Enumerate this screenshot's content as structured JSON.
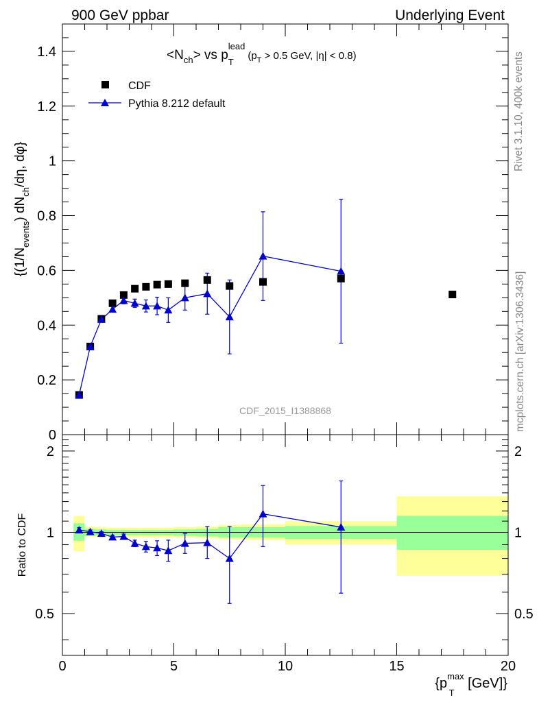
{
  "header": {
    "left": "900 GeV ppbar",
    "right": "Underlying Event"
  },
  "side_labels": {
    "rivet": "Rivet 3.1.10,  400k events",
    "mcplots": "mcplots.cern.ch [arXiv:1306.3436]"
  },
  "watermark": "CDF_2015_I1388868",
  "chart_data": [
    {
      "type": "scatter",
      "title": "<N_ch> vs p_T^lead (p_T > 0.5 GeV, |η| < 0.8)",
      "title_parts": {
        "lt": "<N",
        "ch": "ch",
        "gt_vs": "> vs p",
        "lead": "lead",
        "T": "T",
        "cut_open": "(p",
        "cut_T": "T",
        "cut_rest": " > 0.5 GeV, |η| < 0.8)"
      },
      "ylabel": "{(1/N_events) dN_ch/dη, dφ}",
      "ylabel_parts": {
        "a": "{(1/N",
        "b": "events",
        "c": ") dN",
        "d": "ch",
        "e": "/dη, dφ}"
      },
      "xlim": [
        0,
        20
      ],
      "ylim": [
        0,
        1.5
      ],
      "yticks": [
        "0",
        "0.2",
        "0.4",
        "0.6",
        "0.8",
        "1",
        "1.2",
        "1.4"
      ],
      "legend_position": "top-left",
      "series": [
        {
          "name": "CDF",
          "marker": "square",
          "color": "#000000",
          "x": [
            0.75,
            1.25,
            1.75,
            2.25,
            2.75,
            3.25,
            3.75,
            4.25,
            4.75,
            5.5,
            6.5,
            7.5,
            9.0,
            12.5,
            17.5
          ],
          "y": [
            0.145,
            0.322,
            0.423,
            0.48,
            0.51,
            0.533,
            0.54,
            0.548,
            0.55,
            0.553,
            0.565,
            0.543,
            0.558,
            0.57,
            0.512
          ]
        },
        {
          "name": "Pythia 8.212 default",
          "marker": "triangle",
          "color": "#0000cc",
          "x": [
            0.75,
            1.25,
            1.75,
            2.25,
            2.75,
            3.25,
            3.75,
            4.25,
            4.75,
            5.5,
            6.5,
            7.5,
            9.0,
            12.5
          ],
          "y": [
            0.145,
            0.322,
            0.421,
            0.458,
            0.49,
            0.48,
            0.47,
            0.47,
            0.455,
            0.5,
            0.515,
            0.43,
            0.652,
            0.597
          ],
          "yerr": [
            0.004,
            0.006,
            0.008,
            0.01,
            0.012,
            0.015,
            0.022,
            0.032,
            0.045,
            0.045,
            0.075,
            0.135,
            0.162,
            0.263
          ]
        }
      ]
    },
    {
      "type": "scatter",
      "ylabel": "Ratio to CDF",
      "xlabel": "{p_T^max [GeV]}",
      "xlabel_parts": {
        "open": "{p",
        "sup": "max",
        "sub": "T",
        "close": " [GeV]}"
      },
      "xlim": [
        0,
        20
      ],
      "ylim": [
        0.35,
        2.3
      ],
      "ylog": true,
      "xticks": [
        "0",
        "5",
        "10",
        "15",
        "20"
      ],
      "yticks": [
        "0.5",
        "1",
        "2"
      ],
      "bands": [
        {
          "x0": 0.5,
          "x1": 1.0,
          "inner": [
            0.93,
            1.08
          ],
          "outer": [
            0.85,
            1.15
          ]
        },
        {
          "x0": 1.0,
          "x1": 1.5,
          "inner": [
            0.97,
            1.03
          ],
          "outer": [
            0.96,
            1.05
          ]
        },
        {
          "x0": 1.5,
          "x1": 2.0,
          "inner": [
            0.975,
            1.025
          ],
          "outer": [
            0.96,
            1.045
          ]
        },
        {
          "x0": 2.0,
          "x1": 2.5,
          "inner": [
            0.975,
            1.02
          ],
          "outer": [
            0.96,
            1.04
          ]
        },
        {
          "x0": 2.5,
          "x1": 3.0,
          "inner": [
            0.975,
            1.02
          ],
          "outer": [
            0.96,
            1.04
          ]
        },
        {
          "x0": 3.0,
          "x1": 3.5,
          "inner": [
            0.975,
            1.02
          ],
          "outer": [
            0.955,
            1.04
          ]
        },
        {
          "x0": 3.5,
          "x1": 4.0,
          "inner": [
            0.975,
            1.02
          ],
          "outer": [
            0.955,
            1.04
          ]
        },
        {
          "x0": 4.0,
          "x1": 4.5,
          "inner": [
            0.975,
            1.02
          ],
          "outer": [
            0.955,
            1.04
          ]
        },
        {
          "x0": 4.5,
          "x1": 5.0,
          "inner": [
            0.975,
            1.02
          ],
          "outer": [
            0.955,
            1.04
          ]
        },
        {
          "x0": 5.0,
          "x1": 6.0,
          "inner": [
            0.97,
            1.025
          ],
          "outer": [
            0.955,
            1.045
          ]
        },
        {
          "x0": 6.0,
          "x1": 7.0,
          "inner": [
            0.965,
            1.03
          ],
          "outer": [
            0.95,
            1.05
          ]
        },
        {
          "x0": 7.0,
          "x1": 8.0,
          "inner": [
            0.955,
            1.045
          ],
          "outer": [
            0.94,
            1.065
          ]
        },
        {
          "x0": 8.0,
          "x1": 10.0,
          "inner": [
            0.955,
            1.045
          ],
          "outer": [
            0.935,
            1.07
          ]
        },
        {
          "x0": 10.0,
          "x1": 15.0,
          "inner": [
            0.945,
            1.055
          ],
          "outer": [
            0.9,
            1.1
          ]
        },
        {
          "x0": 15.0,
          "x1": 20.0,
          "inner": [
            0.86,
            1.15
          ],
          "outer": [
            0.69,
            1.36
          ]
        }
      ],
      "band_colors": {
        "inner": "#99ff99",
        "outer": "#ffff99"
      },
      "series": [
        {
          "name": "Pythia 8.212 default",
          "color": "#0000cc",
          "x": [
            0.75,
            1.25,
            1.75,
            2.25,
            2.75,
            3.25,
            3.75,
            4.25,
            4.75,
            5.5,
            6.5,
            7.5,
            9.0,
            12.5
          ],
          "y": [
            1.02,
            1.005,
            0.99,
            0.96,
            0.965,
            0.91,
            0.885,
            0.875,
            0.855,
            0.91,
            0.915,
            0.8,
            1.17,
            1.045
          ],
          "ylow": [
            1.0,
            0.99,
            0.975,
            0.945,
            0.945,
            0.885,
            0.845,
            0.82,
            0.78,
            0.835,
            0.8,
            0.545,
            0.885,
            0.595
          ],
          "yhigh": [
            1.04,
            1.02,
            1.005,
            0.975,
            0.985,
            0.935,
            0.925,
            0.93,
            0.935,
            0.99,
            1.05,
            1.05,
            1.49,
            1.55
          ]
        }
      ]
    }
  ]
}
